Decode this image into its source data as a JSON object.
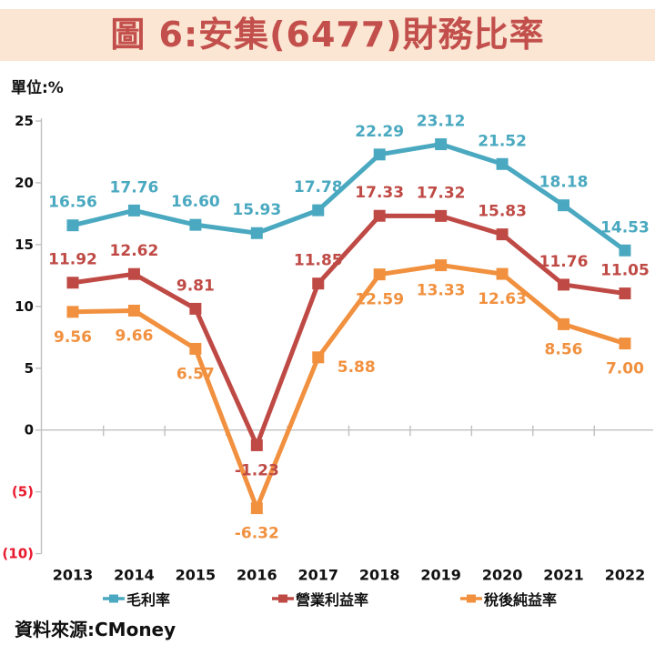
{
  "page": {
    "title": "圖 6:安集(6477)財務比率",
    "unit_label": "單位:%",
    "source": "資料來源:CMoney"
  },
  "colors": {
    "banner_bg": "#fbe5d3",
    "title_text": "#c24f4b",
    "axis_line": "#c0c0c0",
    "tick_label": "#111111",
    "negative_tick_label": "#e8192d",
    "year_label": "#111111",
    "series_teal": "#4aa9c0",
    "series_red": "#bf4a45",
    "series_orange": "#f1913f"
  },
  "chart_data": {
    "type": "line",
    "title": "圖 6:安集(6477)財務比率",
    "unit": "%",
    "categories": [
      "2013",
      "2014",
      "2015",
      "2016",
      "2017",
      "2018",
      "2019",
      "2020",
      "2021",
      "2022"
    ],
    "series": [
      {
        "name": "毛利率",
        "color": "#4aa9c0",
        "values": [
          16.56,
          17.76,
          16.6,
          15.93,
          17.78,
          22.29,
          23.12,
          21.52,
          18.18,
          14.53
        ],
        "labels": [
          "16.56",
          "17.76",
          "16.60",
          "15.93",
          "17.78",
          "22.29",
          "23.12",
          "21.52",
          "18.18",
          "14.53"
        ],
        "label_pos": [
          "above",
          "above",
          "above",
          "above",
          "above",
          "above",
          "above",
          "above",
          "above",
          "above"
        ]
      },
      {
        "name": "營業利益率",
        "color": "#bf4a45",
        "values": [
          11.92,
          12.62,
          9.81,
          -1.23,
          11.85,
          17.33,
          17.32,
          15.83,
          11.76,
          11.05
        ],
        "labels": [
          "11.92",
          "12.62",
          "9.81",
          "-1.23",
          "11.85",
          "17.33",
          "17.32",
          "15.83",
          "11.76",
          "11.05"
        ],
        "label_pos": [
          "above",
          "above",
          "above",
          "below",
          "above",
          "above",
          "above",
          "above",
          "above",
          "above"
        ]
      },
      {
        "name": "稅後純益率",
        "color": "#f1913f",
        "values": [
          9.56,
          9.66,
          6.57,
          -6.32,
          5.88,
          12.59,
          13.33,
          12.63,
          8.56,
          7.0
        ],
        "labels": [
          "9.56",
          "9.66",
          "6.57",
          "-6.32",
          "5.88",
          "12.59",
          "13.33",
          "12.63",
          "8.56",
          "7.00"
        ],
        "label_pos": [
          "below",
          "below",
          "below",
          "below",
          "right",
          "below",
          "below",
          "below",
          "below",
          "below"
        ]
      }
    ],
    "ylim": [
      -10,
      25
    ],
    "yticks": [
      25,
      20,
      15,
      10,
      5,
      0,
      -5,
      -10
    ],
    "ytick_labels": [
      "25",
      "20",
      "15",
      "10",
      "5",
      "0",
      "(5)",
      "(10)"
    ],
    "grid": "zero-baseline-only",
    "legend_position": "bottom",
    "marker": "square"
  }
}
